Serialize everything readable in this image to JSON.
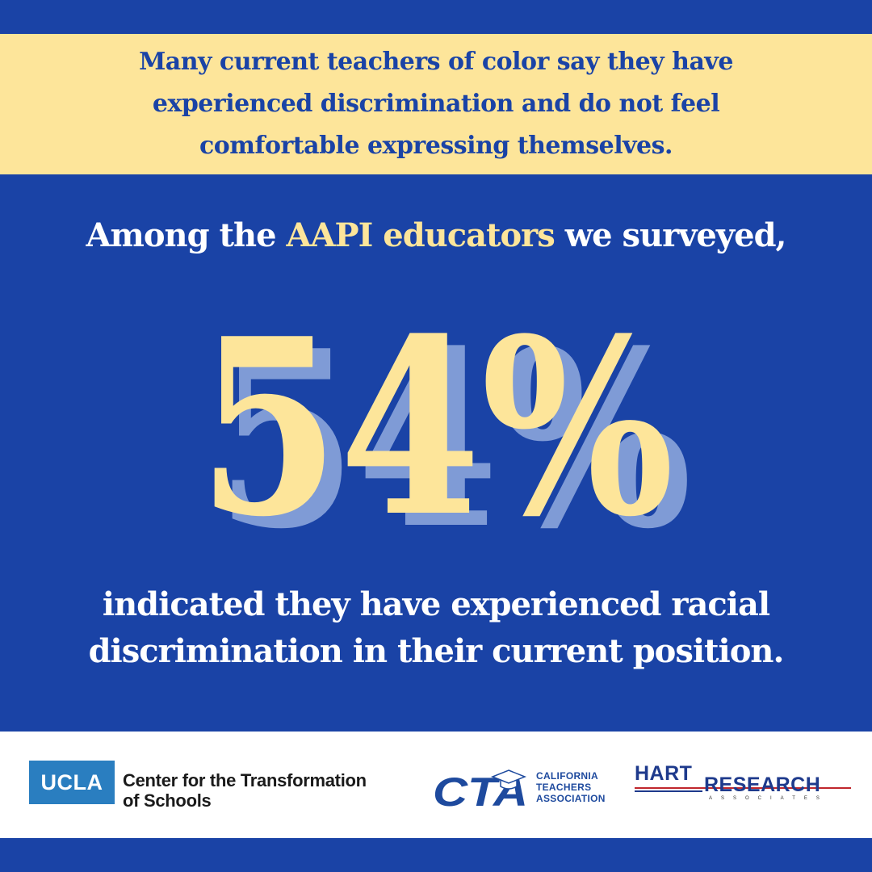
{
  "banner": {
    "lines": [
      "Many current teachers of color say they have",
      "experienced discrimination and do not feel",
      "comfortable expressing themselves."
    ]
  },
  "headline": {
    "before": "Among the ",
    "highlight": "AAPI educators",
    "after": " we surveyed,"
  },
  "statistic": {
    "value": "54%"
  },
  "description": {
    "lines": [
      "indicated they have experienced racial",
      "discrimination in their current position."
    ]
  },
  "footer": {
    "ucla": {
      "badge": "UCLA",
      "name_lines": [
        "Center for the Transformation",
        "of Schools"
      ]
    },
    "cta": {
      "mark": "CTA",
      "name_lines": [
        "CALIFORNIA",
        "TEACHERS",
        "ASSOCIATION"
      ]
    },
    "hart": {
      "word1": "HART",
      "word2": "RESEARCH",
      "word3": "ASSOCIATES"
    }
  },
  "colors": {
    "background": "#1a43a6",
    "accent_yellow": "#fde59a",
    "shadow_blue": "#7f9bd6",
    "white": "#ffffff"
  }
}
